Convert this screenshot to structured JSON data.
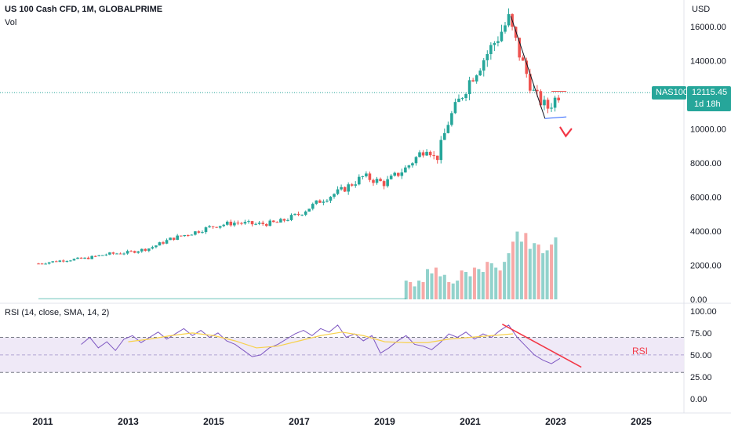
{
  "header": {
    "title": "US 100 Cash CFD, 1M, GLOBALPRIME",
    "volume_label": "Vol",
    "currency": "USD"
  },
  "price_badge": {
    "symbol": "NAS100",
    "price": "12115.45",
    "countdown": "1d 18h"
  },
  "rsi_panel": {
    "label": "RSI (14, close, SMA, 14, 2)",
    "annotation": "RSI"
  },
  "colors": {
    "up": "#26a69a",
    "down": "#ef5350",
    "rsi_line": "#7e57c2",
    "rsi_ma": "#f7d14d",
    "rsi_band": "#ede7f6",
    "annotation_red": "#f23645",
    "trendline": "#131722",
    "price_line": "#26a69a",
    "badge_bg": "#26a69a"
  },
  "chart_data": [
    {
      "type": "candlestick",
      "title": "US 100 Cash CFD, 1M, GLOBALPRIME",
      "x_ticks": [
        "2011",
        "2013",
        "2015",
        "2017",
        "2019",
        "2021",
        "2023",
        "2025"
      ],
      "y_ticks": [
        "0.00",
        "2000.00",
        "4000.00",
        "6000.00",
        "8000.00",
        "10000.00",
        "12000.00",
        "14000.00",
        "16000.00"
      ],
      "ylim": [
        0,
        17000
      ],
      "xlim": [
        2010.0,
        2026.0
      ],
      "last_price": 12115.45,
      "close_anchors": {
        "x": [
          2010.9,
          2011.5,
          2012.0,
          2012.5,
          2013.0,
          2013.5,
          2014.0,
          2014.5,
          2015.0,
          2015.5,
          2016.0,
          2016.5,
          2017.0,
          2017.5,
          2018.0,
          2018.5,
          2019.0,
          2019.5,
          2020.0,
          2020.2,
          2020.5,
          2021.0,
          2021.5,
          2021.9,
          2022.2,
          2022.5,
          2022.8,
          2023.0,
          2023.1
        ],
        "y": [
          2100,
          2300,
          2400,
          2650,
          2750,
          3000,
          3550,
          3900,
          4300,
          4500,
          4400,
          4500,
          5000,
          5800,
          6400,
          7200,
          6800,
          7700,
          9000,
          8100,
          10500,
          12900,
          14800,
          16400,
          14000,
          12000,
          11200,
          11800,
          12115
        ]
      },
      "volume": {
        "y_ticks": [
          "0.00",
          "2000.00",
          "4000.00"
        ],
        "x": [
          2019.5,
          2019.6,
          2019.7,
          2019.8,
          2019.9,
          2020.0,
          2020.1,
          2020.2,
          2020.3,
          2020.4,
          2020.5,
          2020.6,
          2020.7,
          2020.8,
          2020.9,
          2021.0,
          2021.1,
          2021.2,
          2021.3,
          2021.4,
          2021.5,
          2021.6,
          2021.7,
          2021.8,
          2021.9,
          2022.0,
          2022.1,
          2022.2,
          2022.3,
          2022.4,
          2022.5,
          2022.6,
          2022.7,
          2022.8,
          2022.9,
          2023.0
        ],
        "values": [
          1300,
          1200,
          900,
          1300,
          1200,
          2100,
          1800,
          2200,
          1600,
          1700,
          1200,
          1100,
          1300,
          2000,
          1900,
          1600,
          2200,
          2100,
          1900,
          2600,
          2500,
          2200,
          2000,
          2600,
          3200,
          4000,
          4700,
          4000,
          4600,
          3500,
          3900,
          3800,
          3200,
          3400,
          3800,
          4300
        ]
      }
    },
    {
      "type": "line",
      "title": "RSI (14, close, SMA, 14, 2)",
      "y_ticks": [
        "0.00",
        "25.00",
        "50.00",
        "75.00",
        "100.00"
      ],
      "ylim": [
        -10,
        108
      ],
      "band": [
        30,
        70
      ],
      "midline": 50,
      "series": [
        {
          "name": "RSI",
          "x": [
            2011.9,
            2012.1,
            2012.3,
            2012.5,
            2012.7,
            2012.9,
            2013.1,
            2013.3,
            2013.5,
            2013.7,
            2013.9,
            2014.1,
            2014.3,
            2014.5,
            2014.7,
            2014.9,
            2015.1,
            2015.3,
            2015.5,
            2015.7,
            2015.9,
            2016.1,
            2016.3,
            2016.5,
            2016.7,
            2016.9,
            2017.1,
            2017.3,
            2017.5,
            2017.7,
            2017.9,
            2018.1,
            2018.3,
            2018.5,
            2018.7,
            2018.9,
            2019.1,
            2019.3,
            2019.5,
            2019.7,
            2019.9,
            2020.1,
            2020.3,
            2020.5,
            2020.7,
            2020.9,
            2021.1,
            2021.3,
            2021.5,
            2021.7,
            2021.9,
            2022.1,
            2022.3,
            2022.5,
            2022.7,
            2022.9,
            2023.1
          ],
          "values": [
            62,
            70,
            58,
            65,
            55,
            68,
            72,
            64,
            70,
            76,
            68,
            74,
            80,
            72,
            78,
            70,
            75,
            66,
            62,
            55,
            48,
            50,
            58,
            62,
            68,
            74,
            78,
            72,
            80,
            76,
            84,
            70,
            74,
            66,
            72,
            52,
            58,
            66,
            72,
            62,
            60,
            56,
            64,
            74,
            70,
            76,
            68,
            74,
            70,
            78,
            84,
            70,
            60,
            50,
            44,
            40,
            46
          ]
        },
        {
          "name": "SMA",
          "x": [
            2013.0,
            2013.5,
            2014.0,
            2014.5,
            2015.0,
            2015.5,
            2016.0,
            2016.5,
            2017.0,
            2017.5,
            2018.0,
            2018.5,
            2019.0,
            2019.5,
            2020.0,
            2020.5,
            2021.0,
            2021.5,
            2022.0
          ],
          "values": [
            65,
            68,
            72,
            75,
            72,
            66,
            58,
            60,
            66,
            72,
            76,
            72,
            65,
            64,
            64,
            68,
            70,
            72,
            74
          ]
        }
      ]
    }
  ]
}
